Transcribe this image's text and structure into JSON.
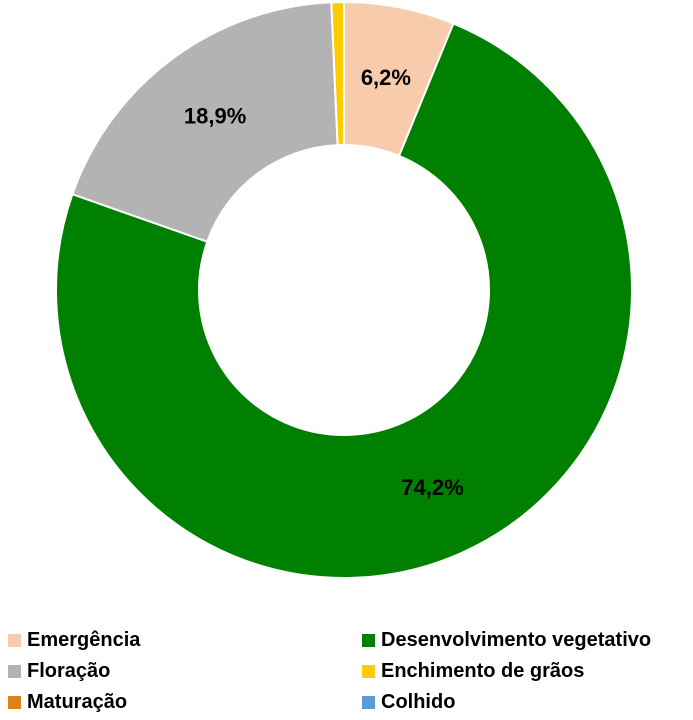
{
  "chart_data": {
    "type": "pie",
    "variant": "donut",
    "title": "",
    "categories": [
      "Emergência",
      "Desenvolvimento vegetativo",
      "Floração",
      "Enchimento de grãos",
      "Maturação",
      "Colhido"
    ],
    "values": [
      6.2,
      74.2,
      18.9,
      0.7,
      0,
      0
    ],
    "colors": [
      "#f8cbad",
      "#008000",
      "#b3b3b3",
      "#ffcc00",
      "#d9841a",
      "#5b9bd5"
    ],
    "data_labels": [
      "6,2%",
      "74,2%",
      "18,9%",
      "",
      "",
      ""
    ],
    "legend_position": "bottom",
    "legend_columns": 2
  }
}
